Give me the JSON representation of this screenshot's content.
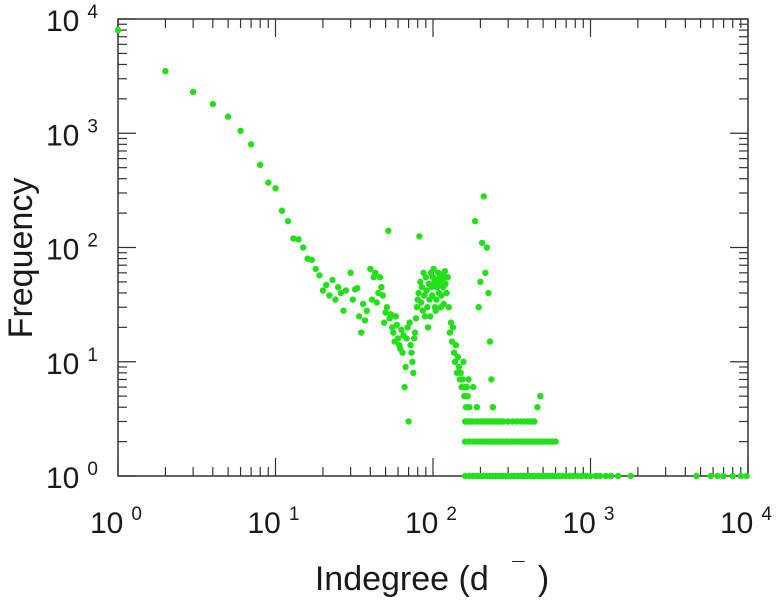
{
  "chart_data": {
    "type": "scatter",
    "title": "",
    "xlabel": "Indegree (d",
    "xlabel_superscript": "¯",
    "xlabel_close": ")",
    "ylabel": "Frequency",
    "xscale": "log",
    "yscale": "log",
    "xlim": [
      1,
      10000
    ],
    "ylim": [
      1,
      10000
    ],
    "grid": false,
    "marker_color": "#22e01a",
    "x_ticks": [
      {
        "base": "10",
        "exp": "0"
      },
      {
        "base": "10",
        "exp": "1"
      },
      {
        "base": "10",
        "exp": "2"
      },
      {
        "base": "10",
        "exp": "3"
      },
      {
        "base": "10",
        "exp": "4"
      }
    ],
    "y_ticks": [
      {
        "base": "10",
        "exp": "0"
      },
      {
        "base": "10",
        "exp": "1"
      },
      {
        "base": "10",
        "exp": "2"
      },
      {
        "base": "10",
        "exp": "3"
      },
      {
        "base": "10",
        "exp": "4"
      }
    ],
    "points": [
      [
        1,
        8000
      ],
      [
        2,
        3500
      ],
      [
        3,
        2300
      ],
      [
        4,
        1800
      ],
      [
        5,
        1400
      ],
      [
        6,
        1050
      ],
      [
        7,
        800
      ],
      [
        8,
        530
      ],
      [
        9,
        370
      ],
      [
        10,
        330
      ],
      [
        11,
        210
      ],
      [
        12,
        170
      ],
      [
        13,
        120
      ],
      [
        14,
        118
      ],
      [
        15,
        100
      ],
      [
        16,
        80
      ],
      [
        17,
        78
      ],
      [
        18,
        65
      ],
      [
        19,
        57
      ],
      [
        20,
        42
      ],
      [
        21,
        47
      ],
      [
        22,
        38
      ],
      [
        23,
        52
      ],
      [
        24,
        35
      ],
      [
        25,
        45
      ],
      [
        26,
        40
      ],
      [
        27,
        28
      ],
      [
        28,
        42
      ],
      [
        30,
        60
      ],
      [
        31,
        35
      ],
      [
        32,
        43
      ],
      [
        33,
        44
      ],
      [
        34,
        25
      ],
      [
        35,
        18
      ],
      [
        36,
        32
      ],
      [
        37,
        23
      ],
      [
        38,
        28
      ],
      [
        40,
        65
      ],
      [
        41,
        35
      ],
      [
        42,
        55
      ],
      [
        43,
        60
      ],
      [
        44,
        33
      ],
      [
        45,
        40
      ],
      [
        46,
        55
      ],
      [
        47,
        45
      ],
      [
        48,
        38
      ],
      [
        49,
        22
      ],
      [
        50,
        27
      ],
      [
        51,
        30
      ],
      [
        52,
        140
      ],
      [
        53,
        24
      ],
      [
        54,
        26
      ],
      [
        55,
        20
      ],
      [
        56,
        18
      ],
      [
        57,
        15
      ],
      [
        58,
        25
      ],
      [
        59,
        21
      ],
      [
        60,
        16
      ],
      [
        61,
        14
      ],
      [
        62,
        13
      ],
      [
        63,
        19
      ],
      [
        64,
        12
      ],
      [
        65,
        17
      ],
      [
        66,
        6
      ],
      [
        67,
        9
      ],
      [
        68,
        16
      ],
      [
        69,
        20
      ],
      [
        70,
        3
      ],
      [
        71,
        22
      ],
      [
        72,
        14
      ],
      [
        73,
        12
      ],
      [
        74,
        10
      ],
      [
        75,
        8
      ],
      [
        76,
        16
      ],
      [
        77,
        18
      ],
      [
        78,
        24
      ],
      [
        79,
        30
      ],
      [
        80,
        35
      ],
      [
        81,
        40
      ],
      [
        82,
        125
      ],
      [
        83,
        50
      ],
      [
        84,
        33
      ],
      [
        85,
        45
      ],
      [
        86,
        28
      ],
      [
        87,
        60
      ],
      [
        88,
        38
      ],
      [
        89,
        25
      ],
      [
        90,
        55
      ],
      [
        91,
        42
      ],
      [
        92,
        30
      ],
      [
        93,
        20
      ],
      [
        94,
        48
      ],
      [
        95,
        35
      ],
      [
        96,
        25
      ],
      [
        97,
        60
      ],
      [
        98,
        45
      ],
      [
        99,
        38
      ],
      [
        100,
        55
      ],
      [
        101,
        65
      ],
      [
        102,
        50
      ],
      [
        103,
        30
      ],
      [
        104,
        28
      ],
      [
        105,
        35
      ],
      [
        106,
        45
      ],
      [
        107,
        52
      ],
      [
        108,
        60
      ],
      [
        109,
        40
      ],
      [
        110,
        55
      ],
      [
        111,
        48
      ],
      [
        112,
        30
      ],
      [
        113,
        38
      ],
      [
        114,
        58
      ],
      [
        115,
        50
      ],
      [
        116,
        45
      ],
      [
        117,
        32
      ],
      [
        118,
        55
      ],
      [
        119,
        62
      ],
      [
        120,
        48
      ],
      [
        122,
        40
      ],
      [
        124,
        55
      ],
      [
        126,
        30
      ],
      [
        128,
        18
      ],
      [
        130,
        22
      ],
      [
        132,
        15
      ],
      [
        134,
        20
      ],
      [
        136,
        12
      ],
      [
        138,
        10
      ],
      [
        140,
        14
      ],
      [
        142,
        8
      ],
      [
        144,
        11
      ],
      [
        146,
        9
      ],
      [
        148,
        7
      ],
      [
        150,
        8
      ],
      [
        152,
        6
      ],
      [
        154,
        7
      ],
      [
        156,
        10
      ],
      [
        158,
        5
      ],
      [
        160,
        6
      ],
      [
        162,
        4
      ],
      [
        164,
        6
      ],
      [
        166,
        5
      ],
      [
        168,
        7
      ],
      [
        170,
        4
      ],
      [
        175,
        3
      ],
      [
        180,
        6
      ],
      [
        185,
        170
      ],
      [
        190,
        4
      ],
      [
        195,
        30
      ],
      [
        200,
        50
      ],
      [
        205,
        110
      ],
      [
        210,
        280
      ],
      [
        215,
        60
      ],
      [
        220,
        100
      ],
      [
        225,
        40
      ],
      [
        230,
        15
      ],
      [
        235,
        7
      ],
      [
        240,
        4
      ],
      [
        160,
        3
      ],
      [
        165,
        3
      ],
      [
        170,
        3
      ],
      [
        180,
        3
      ],
      [
        190,
        3
      ],
      [
        200,
        3
      ],
      [
        210,
        3
      ],
      [
        220,
        3
      ],
      [
        230,
        3
      ],
      [
        240,
        3
      ],
      [
        250,
        3
      ],
      [
        260,
        3
      ],
      [
        270,
        3
      ],
      [
        280,
        3
      ],
      [
        300,
        3
      ],
      [
        320,
        3
      ],
      [
        340,
        3
      ],
      [
        360,
        3
      ],
      [
        380,
        3
      ],
      [
        400,
        3
      ],
      [
        420,
        3
      ],
      [
        440,
        3
      ],
      [
        460,
        4
      ],
      [
        480,
        5
      ],
      [
        160,
        2
      ],
      [
        170,
        2
      ],
      [
        180,
        2
      ],
      [
        190,
        2
      ],
      [
        200,
        2
      ],
      [
        210,
        2
      ],
      [
        220,
        2
      ],
      [
        230,
        2
      ],
      [
        240,
        2
      ],
      [
        250,
        2
      ],
      [
        260,
        2
      ],
      [
        270,
        2
      ],
      [
        280,
        2
      ],
      [
        290,
        2
      ],
      [
        300,
        2
      ],
      [
        315,
        2
      ],
      [
        330,
        2
      ],
      [
        345,
        2
      ],
      [
        360,
        2
      ],
      [
        375,
        2
      ],
      [
        390,
        2
      ],
      [
        405,
        2
      ],
      [
        420,
        2
      ],
      [
        440,
        2
      ],
      [
        460,
        2
      ],
      [
        480,
        2
      ],
      [
        500,
        2
      ],
      [
        520,
        2
      ],
      [
        545,
        2
      ],
      [
        570,
        2
      ],
      [
        600,
        2
      ],
      [
        160,
        1
      ],
      [
        170,
        1
      ],
      [
        180,
        1
      ],
      [
        190,
        1
      ],
      [
        200,
        1
      ],
      [
        210,
        1
      ],
      [
        220,
        1
      ],
      [
        230,
        1
      ],
      [
        240,
        1
      ],
      [
        250,
        1
      ],
      [
        260,
        1
      ],
      [
        270,
        1
      ],
      [
        280,
        1
      ],
      [
        290,
        1
      ],
      [
        300,
        1
      ],
      [
        315,
        1
      ],
      [
        330,
        1
      ],
      [
        345,
        1
      ],
      [
        360,
        1
      ],
      [
        375,
        1
      ],
      [
        390,
        1
      ],
      [
        405,
        1
      ],
      [
        420,
        1
      ],
      [
        440,
        1
      ],
      [
        460,
        1
      ],
      [
        480,
        1
      ],
      [
        500,
        1
      ],
      [
        520,
        1
      ],
      [
        545,
        1
      ],
      [
        570,
        1
      ],
      [
        600,
        1
      ],
      [
        630,
        1
      ],
      [
        660,
        1
      ],
      [
        700,
        1
      ],
      [
        740,
        1
      ],
      [
        780,
        1
      ],
      [
        830,
        1
      ],
      [
        880,
        1
      ],
      [
        940,
        1
      ],
      [
        1000,
        1
      ],
      [
        1080,
        1
      ],
      [
        1150,
        1
      ],
      [
        1250,
        1
      ],
      [
        1350,
        1
      ],
      [
        1500,
        1
      ],
      [
        1800,
        1
      ],
      [
        4700,
        1
      ],
      [
        5800,
        1
      ],
      [
        6400,
        1
      ],
      [
        7000,
        1
      ],
      [
        8000,
        1
      ],
      [
        9000,
        1
      ],
      [
        9800,
        1
      ]
    ]
  }
}
